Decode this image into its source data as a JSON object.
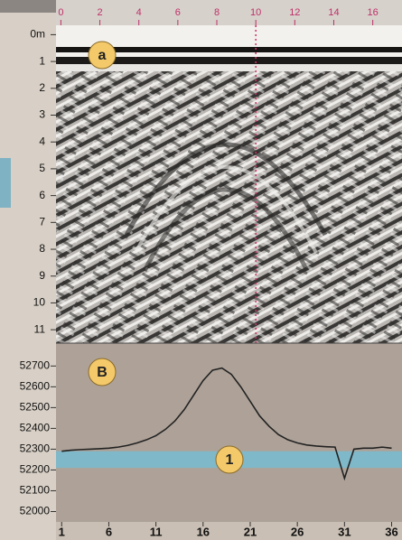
{
  "chart_data": [
    {
      "type": "radargram",
      "xlim": [
        -0.25,
        17.5
      ],
      "xticks": [
        0,
        2,
        4,
        6,
        8,
        10,
        12,
        14,
        16
      ],
      "ylim": [
        -0.35,
        11.5
      ],
      "yticks": [
        {
          "value": 0,
          "label": "0m"
        },
        1,
        2,
        3,
        4,
        5,
        6,
        7,
        8,
        9,
        10,
        11
      ],
      "marker_x": 10,
      "marker_color": "#d0306a",
      "annotation": "a"
    },
    {
      "type": "line",
      "x": [
        1,
        2,
        3,
        4,
        5,
        6,
        7,
        8,
        9,
        10,
        11,
        12,
        13,
        14,
        15,
        16,
        17,
        18,
        19,
        20,
        21,
        22,
        23,
        24,
        25,
        26,
        27,
        28,
        29,
        30,
        31,
        32,
        33,
        34,
        35,
        36
      ],
      "series": [
        {
          "color": "#222222",
          "values": [
            52290,
            52295,
            52298,
            52300,
            52302,
            52305,
            52310,
            52318,
            52330,
            52345,
            52365,
            52395,
            52435,
            52490,
            52560,
            52630,
            52680,
            52690,
            52660,
            52600,
            52530,
            52460,
            52410,
            52370,
            52345,
            52330,
            52320,
            52315,
            52312,
            52310,
            52160,
            52300,
            52305,
            52305,
            52310,
            52305
          ]
        }
      ],
      "xlim": [
        0.4,
        37.1
      ],
      "xticks": [
        1,
        6,
        11,
        16,
        21,
        26,
        31,
        36
      ],
      "ylim": [
        51950,
        52810
      ],
      "yticks": [
        52000,
        52100,
        52200,
        52300,
        52400,
        52500,
        52600,
        52700
      ],
      "band": [
        52210,
        52290
      ],
      "band_color": "#7fb8c8",
      "annotations": [
        "B",
        "1"
      ]
    }
  ]
}
